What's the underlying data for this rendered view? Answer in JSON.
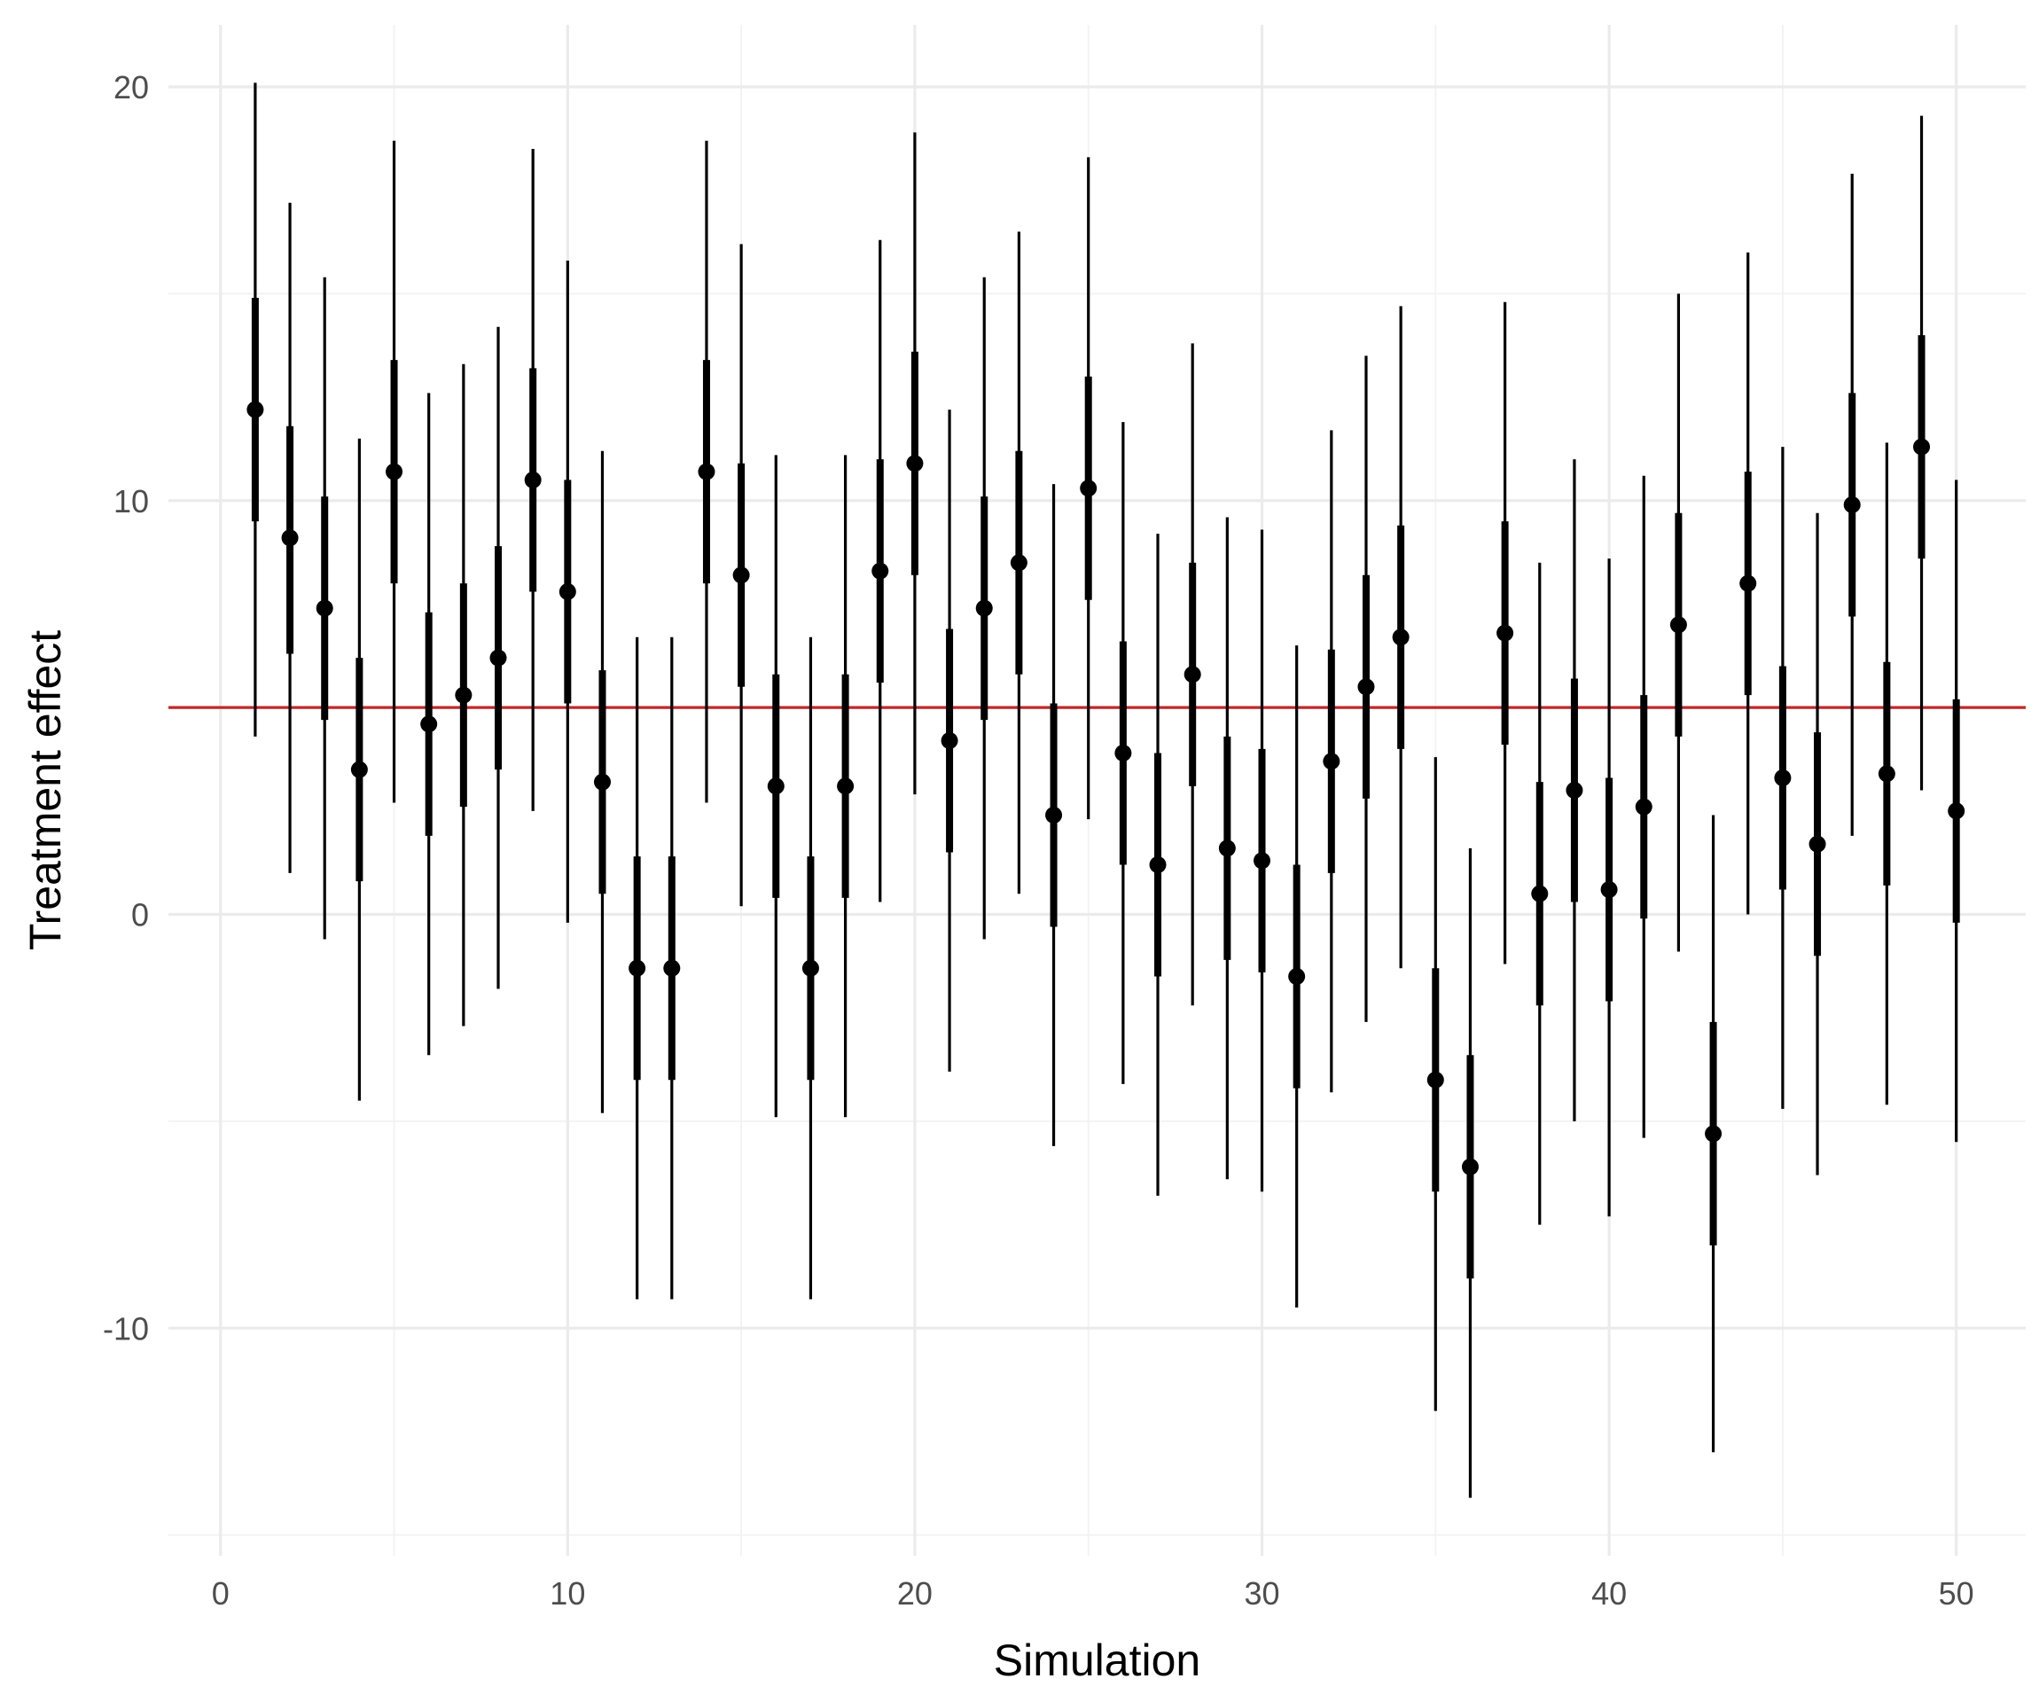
{
  "chart_data": {
    "type": "scatter",
    "xlabel": "Simulation",
    "ylabel": "Treatment effect",
    "xlim": [
      -1.5,
      52
    ],
    "ylim": [
      -15.5,
      21.5
    ],
    "x_ticks": [
      0,
      10,
      20,
      30,
      40,
      50
    ],
    "x_tick_labels": [
      "0",
      "10",
      "20",
      "30",
      "40",
      "50"
    ],
    "y_ticks": [
      -10,
      0,
      10,
      20
    ],
    "y_tick_labels": [
      "-10",
      "0",
      "10",
      "20"
    ],
    "reference_line": {
      "y": 5,
      "color": "#c0282a"
    },
    "grid": true,
    "x": [
      1,
      2,
      3,
      4,
      5,
      6,
      7,
      8,
      9,
      10,
      11,
      12,
      13,
      14,
      15,
      16,
      17,
      18,
      19,
      20,
      21,
      22,
      23,
      24,
      25,
      26,
      27,
      28,
      29,
      30,
      31,
      32,
      33,
      34,
      35,
      36,
      37,
      38,
      39,
      40,
      41,
      42,
      43,
      44,
      45,
      46,
      47,
      48,
      49,
      50
    ],
    "estimate": [
      12.2,
      9.1,
      7.4,
      3.5,
      10.7,
      4.6,
      5.3,
      6.2,
      10.5,
      7.8,
      3.2,
      -1.3,
      -1.3,
      10.7,
      8.2,
      3.1,
      -1.3,
      3.1,
      8.3,
      10.9,
      4.2,
      7.4,
      8.5,
      2.4,
      10.3,
      3.9,
      1.2,
      5.8,
      1.6,
      1.3,
      -1.5,
      3.7,
      5.5,
      6.7,
      -4.0,
      -6.1,
      6.8,
      0.5,
      3.0,
      0.6,
      2.6,
      7.0,
      -5.3,
      8.0,
      3.3,
      1.7,
      9.9,
      3.4,
      11.3,
      2.5
    ],
    "inner_low": [
      9.5,
      6.3,
      4.7,
      0.8,
      8.0,
      1.9,
      2.6,
      3.5,
      7.8,
      5.1,
      0.5,
      -4.0,
      -4.0,
      8.0,
      5.5,
      0.4,
      -4.0,
      0.4,
      5.6,
      8.2,
      1.5,
      4.7,
      5.8,
      -0.3,
      7.6,
      1.2,
      -1.5,
      3.1,
      -1.1,
      -1.4,
      -4.2,
      1.0,
      2.8,
      4.0,
      -6.7,
      -8.8,
      4.1,
      -2.2,
      0.3,
      -2.1,
      -0.1,
      4.3,
      -8.0,
      5.3,
      0.6,
      -1.0,
      7.2,
      0.7,
      8.6,
      -0.2
    ],
    "inner_high": [
      14.9,
      11.8,
      10.1,
      6.2,
      13.4,
      7.3,
      8.0,
      8.9,
      13.2,
      10.5,
      5.9,
      1.4,
      1.4,
      13.4,
      10.9,
      5.8,
      1.4,
      5.8,
      11.0,
      13.6,
      6.9,
      10.1,
      11.2,
      5.1,
      13.0,
      6.6,
      3.9,
      8.5,
      4.3,
      4.0,
      1.2,
      6.4,
      8.2,
      9.4,
      -1.3,
      -3.4,
      9.5,
      3.2,
      5.7,
      3.3,
      5.3,
      9.7,
      -2.6,
      10.7,
      6.0,
      4.4,
      12.6,
      6.1,
      14.0,
      5.2
    ],
    "outer_low": [
      4.3,
      1.0,
      -0.6,
      -4.5,
      2.7,
      -3.4,
      -2.7,
      -1.8,
      2.5,
      -0.2,
      -4.8,
      -9.3,
      -9.3,
      2.7,
      0.2,
      -4.9,
      -9.3,
      -4.9,
      0.3,
      2.9,
      -3.8,
      -0.6,
      0.5,
      -5.6,
      2.3,
      -4.1,
      -6.8,
      -2.2,
      -6.4,
      -6.7,
      -9.5,
      -4.3,
      -2.6,
      -1.3,
      -12.0,
      -14.1,
      -1.2,
      -7.5,
      -5.0,
      -7.3,
      -5.4,
      -0.9,
      -13.0,
      0.0,
      -4.7,
      -6.3,
      1.9,
      -4.6,
      3.0,
      -5.5
    ],
    "outer_high": [
      20.1,
      17.2,
      15.4,
      11.5,
      18.7,
      12.6,
      13.3,
      14.2,
      18.5,
      15.8,
      11.2,
      6.7,
      6.7,
      18.7,
      16.2,
      11.1,
      6.7,
      11.1,
      16.3,
      18.9,
      12.2,
      15.4,
      16.5,
      10.4,
      18.3,
      11.9,
      9.2,
      13.8,
      9.6,
      9.3,
      6.5,
      11.7,
      13.5,
      14.7,
      3.8,
      1.6,
      14.8,
      8.5,
      11.0,
      8.6,
      10.6,
      15.0,
      2.4,
      16.0,
      11.3,
      9.7,
      17.9,
      11.4,
      19.3,
      10.5
    ]
  }
}
